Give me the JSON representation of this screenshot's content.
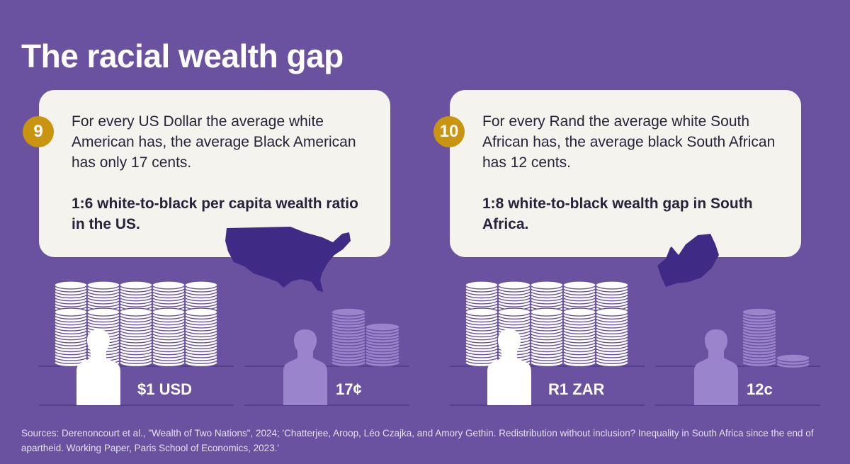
{
  "title": "The racial wealth gap",
  "colors": {
    "background": "#6a52a0",
    "card": "#f4f3ee",
    "badge": "#c9940f",
    "map": "#3f2a85",
    "white_coins": "#ffffff",
    "black_coins": "#9a85cc"
  },
  "panels": [
    {
      "number": "9",
      "text": "For every US Dollar the average white American has, the average Black American has only 17 cents.",
      "highlight": "1:6 white-to-black per capita wealth ratio in the US.",
      "map_icon": "usa-map-icon",
      "white_amount": "$1 USD",
      "black_amount": "17¢"
    },
    {
      "number": "10",
      "text": "For every Rand the average white South African has, the average black South African has 12 cents.",
      "highlight": "1:8 white-to-black wealth gap in South Africa.",
      "map_icon": "south-africa-map-icon",
      "white_amount": "R1 ZAR",
      "black_amount": "12c"
    }
  ],
  "sources": "Sources: Derenoncourt et al., \"Wealth of Two Nations\", 2024; 'Chatterjee, Aroop, Léo Czajka, and Amory Gethin. Redistribution without inclusion? Inequality in South Africa since the end of apartheid. Working Paper, Paris School of Economics, 2023.'"
}
